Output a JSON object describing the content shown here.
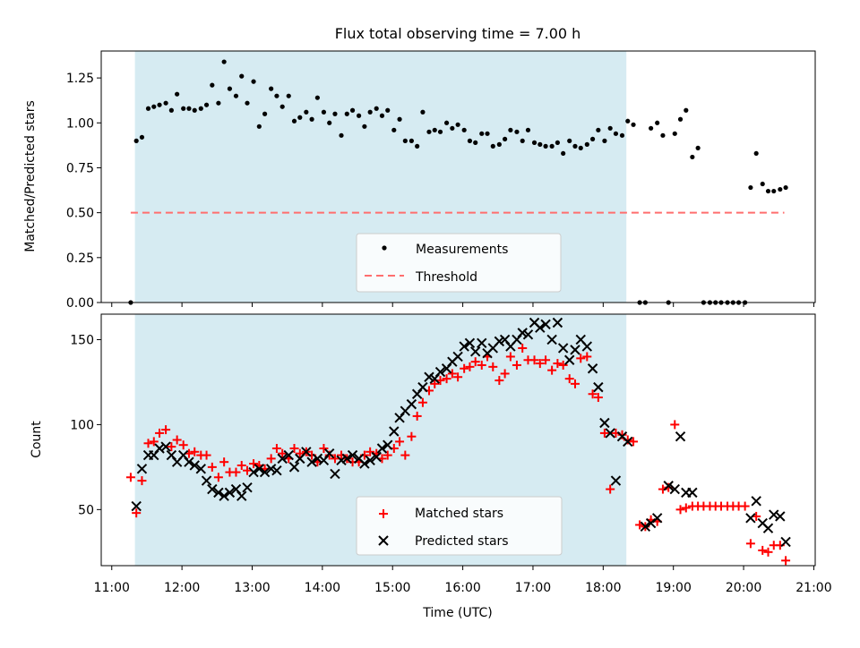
{
  "chart_data": [
    {
      "type": "scatter",
      "title": "Flux total observing time = 7.00 h",
      "xlabel": "",
      "ylabel": "Matched/Predicted stars",
      "xlim": [
        10.85,
        21.02
      ],
      "ylim": [
        0.0,
        1.4
      ],
      "yticks": [
        0.0,
        0.25,
        0.5,
        0.75,
        1.0,
        1.25
      ],
      "ytick_labels": [
        "0.00",
        "0.25",
        "0.50",
        "0.75",
        "1.00",
        "1.25"
      ],
      "xticks": [
        11,
        12,
        13,
        14,
        15,
        16,
        17,
        18,
        19,
        20,
        21
      ],
      "shaded_span": [
        11.33,
        18.33
      ],
      "shade_color": "#add8e6",
      "threshold": {
        "name": "Threshold",
        "value": 0.5,
        "x_range": [
          11.27,
          20.58
        ],
        "color": "#ff6e6e"
      },
      "legend": [
        "Measurements",
        "Threshold"
      ],
      "legend_loc": "lower center",
      "series": [
        {
          "name": "Measurements",
          "color": "#000000",
          "x": [
            11.27,
            11.35,
            11.43,
            11.52,
            11.6,
            11.68,
            11.77,
            11.85,
            11.93,
            12.02,
            12.1,
            12.18,
            12.27,
            12.35,
            12.43,
            12.52,
            12.6,
            12.68,
            12.77,
            12.85,
            12.93,
            13.02,
            13.1,
            13.18,
            13.27,
            13.35,
            13.43,
            13.52,
            13.6,
            13.68,
            13.77,
            13.85,
            13.93,
            14.02,
            14.1,
            14.18,
            14.27,
            14.35,
            14.43,
            14.52,
            14.6,
            14.68,
            14.77,
            14.85,
            14.93,
            15.02,
            15.1,
            15.18,
            15.27,
            15.35,
            15.43,
            15.52,
            15.6,
            15.68,
            15.77,
            15.85,
            15.93,
            16.02,
            16.1,
            16.18,
            16.27,
            16.35,
            16.43,
            16.52,
            16.6,
            16.68,
            16.77,
            16.85,
            16.93,
            17.02,
            17.1,
            17.18,
            17.27,
            17.35,
            17.43,
            17.52,
            17.6,
            17.68,
            17.77,
            17.85,
            17.93,
            18.02,
            18.1,
            18.18,
            18.27,
            18.35,
            18.43,
            18.52,
            18.6,
            18.68,
            18.77,
            18.85,
            18.93,
            19.02,
            19.1,
            19.18,
            19.27,
            19.35,
            19.43,
            19.52,
            19.6,
            19.68,
            19.77,
            19.85,
            19.93,
            20.02,
            20.1,
            20.18,
            20.27,
            20.35,
            20.43,
            20.52,
            20.6
          ],
          "y": [
            0.0,
            0.9,
            0.92,
            1.08,
            1.09,
            1.1,
            1.11,
            1.07,
            1.16,
            1.08,
            1.08,
            1.07,
            1.08,
            1.1,
            1.21,
            1.11,
            1.34,
            1.19,
            1.15,
            1.26,
            1.11,
            1.23,
            0.98,
            1.05,
            1.19,
            1.15,
            1.09,
            1.15,
            1.01,
            1.03,
            1.06,
            1.02,
            1.14,
            1.06,
            1.0,
            1.05,
            0.93,
            1.05,
            1.07,
            1.04,
            0.98,
            1.06,
            1.08,
            1.04,
            1.07,
            0.96,
            1.02,
            0.9,
            0.9,
            0.87,
            1.06,
            0.95,
            0.96,
            0.95,
            1.0,
            0.97,
            0.99,
            0.96,
            0.9,
            0.89,
            0.94,
            0.94,
            0.87,
            0.88,
            0.91,
            0.96,
            0.95,
            0.9,
            0.96,
            0.89,
            0.88,
            0.87,
            0.87,
            0.89,
            0.83,
            0.9,
            0.87,
            0.86,
            0.88,
            0.91,
            0.96,
            0.9,
            0.97,
            0.94,
            0.93,
            1.01,
            0.99,
            0.0,
            0.0,
            0.97,
            1.0,
            0.93,
            0.0,
            0.94,
            1.02,
            1.07,
            0.81,
            0.86,
            0.0,
            0.0,
            0.0,
            0.0,
            0.0,
            0.0,
            0.0,
            0.0,
            0.64,
            0.83,
            0.66,
            0.62,
            0.62,
            0.63,
            0.64
          ]
        }
      ]
    },
    {
      "type": "scatter",
      "title": "",
      "xlabel": "Time (UTC)",
      "ylabel": "Count",
      "xlim": [
        10.85,
        21.02
      ],
      "ylim": [
        17,
        165
      ],
      "yticks": [
        50,
        100,
        150
      ],
      "ytick_labels": [
        "50",
        "100",
        "150"
      ],
      "xticks": [
        11,
        12,
        13,
        14,
        15,
        16,
        17,
        18,
        19,
        20,
        21
      ],
      "xtick_labels": [
        "11:00",
        "12:00",
        "13:00",
        "14:00",
        "15:00",
        "16:00",
        "17:00",
        "18:00",
        "19:00",
        "20:00",
        "21:00"
      ],
      "shaded_span": [
        11.33,
        18.33
      ],
      "legend": [
        "Matched stars",
        "Predicted stars"
      ],
      "legend_loc": "lower center",
      "series": [
        {
          "name": "Matched stars",
          "marker": "+",
          "color": "#ff0000",
          "x": [
            11.27,
            11.35,
            11.43,
            11.52,
            11.6,
            11.68,
            11.77,
            11.85,
            11.93,
            12.02,
            12.1,
            12.18,
            12.27,
            12.35,
            12.43,
            12.52,
            12.6,
            12.68,
            12.77,
            12.85,
            12.93,
            13.02,
            13.1,
            13.18,
            13.27,
            13.35,
            13.43,
            13.52,
            13.6,
            13.68,
            13.77,
            13.85,
            13.93,
            14.02,
            14.1,
            14.18,
            14.27,
            14.35,
            14.43,
            14.52,
            14.6,
            14.68,
            14.77,
            14.85,
            14.93,
            15.02,
            15.1,
            15.18,
            15.27,
            15.35,
            15.43,
            15.52,
            15.6,
            15.68,
            15.77,
            15.85,
            15.93,
            16.02,
            16.1,
            16.18,
            16.27,
            16.35,
            16.43,
            16.52,
            16.6,
            16.68,
            16.77,
            16.85,
            16.93,
            17.02,
            17.1,
            17.18,
            17.27,
            17.35,
            17.43,
            17.52,
            17.6,
            17.68,
            17.77,
            17.85,
            17.93,
            18.02,
            18.1,
            18.18,
            18.27,
            18.35,
            18.43,
            18.52,
            18.6,
            18.68,
            18.77,
            18.85,
            18.93,
            19.02,
            19.1,
            19.18,
            19.27,
            19.35,
            19.43,
            19.52,
            19.6,
            19.68,
            19.77,
            19.85,
            19.93,
            20.02,
            20.1,
            20.18,
            20.27,
            20.35,
            20.43,
            20.52,
            20.6
          ],
          "y": [
            69,
            48,
            67,
            89,
            90,
            95,
            97,
            87,
            91,
            88,
            83,
            84,
            82,
            82,
            75,
            69,
            78,
            72,
            72,
            76,
            73,
            77,
            76,
            74,
            80,
            86,
            83,
            80,
            86,
            83,
            84,
            82,
            78,
            86,
            82,
            80,
            82,
            80,
            78,
            78,
            82,
            84,
            83,
            80,
            82,
            86,
            90,
            82,
            93,
            105,
            113,
            120,
            124,
            126,
            127,
            130,
            128,
            133,
            134,
            137,
            135,
            140,
            134,
            126,
            130,
            140,
            135,
            145,
            138,
            138,
            136,
            138,
            132,
            136,
            135,
            127,
            124,
            139,
            140,
            118,
            116,
            95,
            62,
            95,
            94,
            91,
            90,
            41,
            40,
            44,
            43,
            62,
            63,
            100,
            50,
            51,
            52,
            52,
            52,
            52,
            52,
            52,
            52,
            52,
            52,
            52,
            30,
            46,
            26,
            25,
            29,
            29,
            20
          ]
        },
        {
          "name": "Predicted stars",
          "marker": "x",
          "color": "#000000",
          "x": [
            11.35,
            11.43,
            11.52,
            11.6,
            11.68,
            11.77,
            11.85,
            11.93,
            12.02,
            12.1,
            12.18,
            12.27,
            12.35,
            12.43,
            12.52,
            12.6,
            12.68,
            12.77,
            12.85,
            12.93,
            13.02,
            13.1,
            13.18,
            13.27,
            13.35,
            13.43,
            13.52,
            13.6,
            13.68,
            13.77,
            13.85,
            13.93,
            14.02,
            14.1,
            14.18,
            14.27,
            14.35,
            14.43,
            14.52,
            14.6,
            14.68,
            14.77,
            14.85,
            14.93,
            15.02,
            15.1,
            15.18,
            15.27,
            15.35,
            15.43,
            15.52,
            15.6,
            15.68,
            15.77,
            15.85,
            15.93,
            16.02,
            16.1,
            16.18,
            16.27,
            16.35,
            16.43,
            16.52,
            16.6,
            16.68,
            16.77,
            16.85,
            16.93,
            17.02,
            17.1,
            17.18,
            17.27,
            17.35,
            17.43,
            17.52,
            17.6,
            17.68,
            17.77,
            17.85,
            17.93,
            18.02,
            18.1,
            18.18,
            18.27,
            18.35,
            18.6,
            18.68,
            18.77,
            18.93,
            19.02,
            19.1,
            19.18,
            19.27,
            20.1,
            20.18,
            20.27,
            20.35,
            20.43,
            20.52,
            20.6
          ],
          "y": [
            52,
            74,
            82,
            82,
            86,
            87,
            82,
            78,
            82,
            78,
            76,
            74,
            67,
            62,
            60,
            58,
            60,
            62,
            58,
            63,
            72,
            74,
            72,
            74,
            73,
            80,
            82,
            75,
            80,
            84,
            78,
            80,
            79,
            83,
            71,
            79,
            80,
            82,
            80,
            77,
            79,
            81,
            86,
            88,
            96,
            104,
            108,
            112,
            118,
            122,
            128,
            127,
            131,
            133,
            137,
            140,
            146,
            148,
            143,
            148,
            142,
            145,
            149,
            150,
            146,
            150,
            154,
            153,
            160,
            157,
            159,
            150,
            160,
            145,
            138,
            144,
            150,
            146,
            133,
            122,
            101,
            95,
            67,
            93,
            90,
            40,
            42,
            45,
            64,
            62,
            93,
            60,
            60,
            45,
            55,
            42,
            39,
            47,
            46,
            31
          ]
        }
      ]
    }
  ]
}
